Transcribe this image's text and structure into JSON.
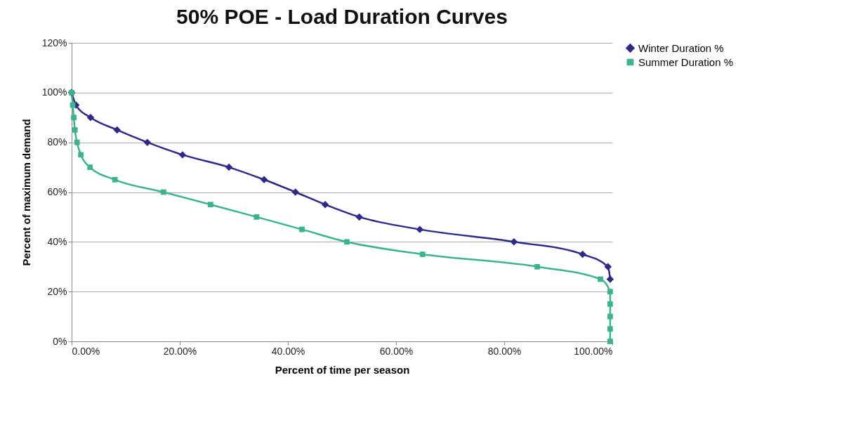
{
  "chart_data": {
    "type": "line",
    "title": "50% POE - Load Duration Curves",
    "xlabel": "Percent of time per season",
    "ylabel": "Percent of maximum demand",
    "xlim": [
      0,
      100
    ],
    "xticks": [
      {
        "value": 0,
        "label": "0.00%"
      },
      {
        "value": 20,
        "label": "20.00%"
      },
      {
        "value": 40,
        "label": "40.00%"
      },
      {
        "value": 60,
        "label": "60.00%"
      },
      {
        "value": 80,
        "label": "80.00%"
      },
      {
        "value": 100,
        "label": "100.00%"
      }
    ],
    "ylim": [
      0,
      120
    ],
    "yticks": [
      {
        "value": 0,
        "label": "0%"
      },
      {
        "value": 20,
        "label": "20%"
      },
      {
        "value": 40,
        "label": "40%"
      },
      {
        "value": 60,
        "label": "60%"
      },
      {
        "value": 80,
        "label": "80%"
      },
      {
        "value": 100,
        "label": "100%"
      },
      {
        "value": 120,
        "label": "120%"
      }
    ],
    "grid": "y",
    "legend": "right",
    "series": [
      {
        "name": "Winter Duration %",
        "color": "#2e2a8a",
        "marker": "diamond",
        "x": [
          0,
          0.8,
          3.5,
          8.4,
          14.0,
          20.5,
          29.1,
          35.6,
          41.4,
          46.9,
          53.2,
          64.4,
          81.8,
          94.5,
          99.2,
          99.6
        ],
        "values": [
          100,
          95,
          90,
          85,
          80,
          75,
          70,
          65,
          60,
          55,
          50,
          45,
          40,
          35,
          30,
          25
        ]
      },
      {
        "name": "Summer Duration %",
        "color": "#3cb38f",
        "marker": "square",
        "x": [
          0,
          0.2,
          0.4,
          0.6,
          1.0,
          1.7,
          3.4,
          8.0,
          17.0,
          25.7,
          34.2,
          42.6,
          50.9,
          64.9,
          86.1,
          97.8,
          99.6,
          99.6,
          99.6,
          99.6,
          99.6
        ],
        "values": [
          100,
          95,
          90,
          85,
          80,
          75,
          70,
          65,
          60,
          55,
          50,
          45,
          40,
          35,
          30,
          25,
          20,
          15,
          10,
          5,
          0
        ]
      }
    ]
  }
}
